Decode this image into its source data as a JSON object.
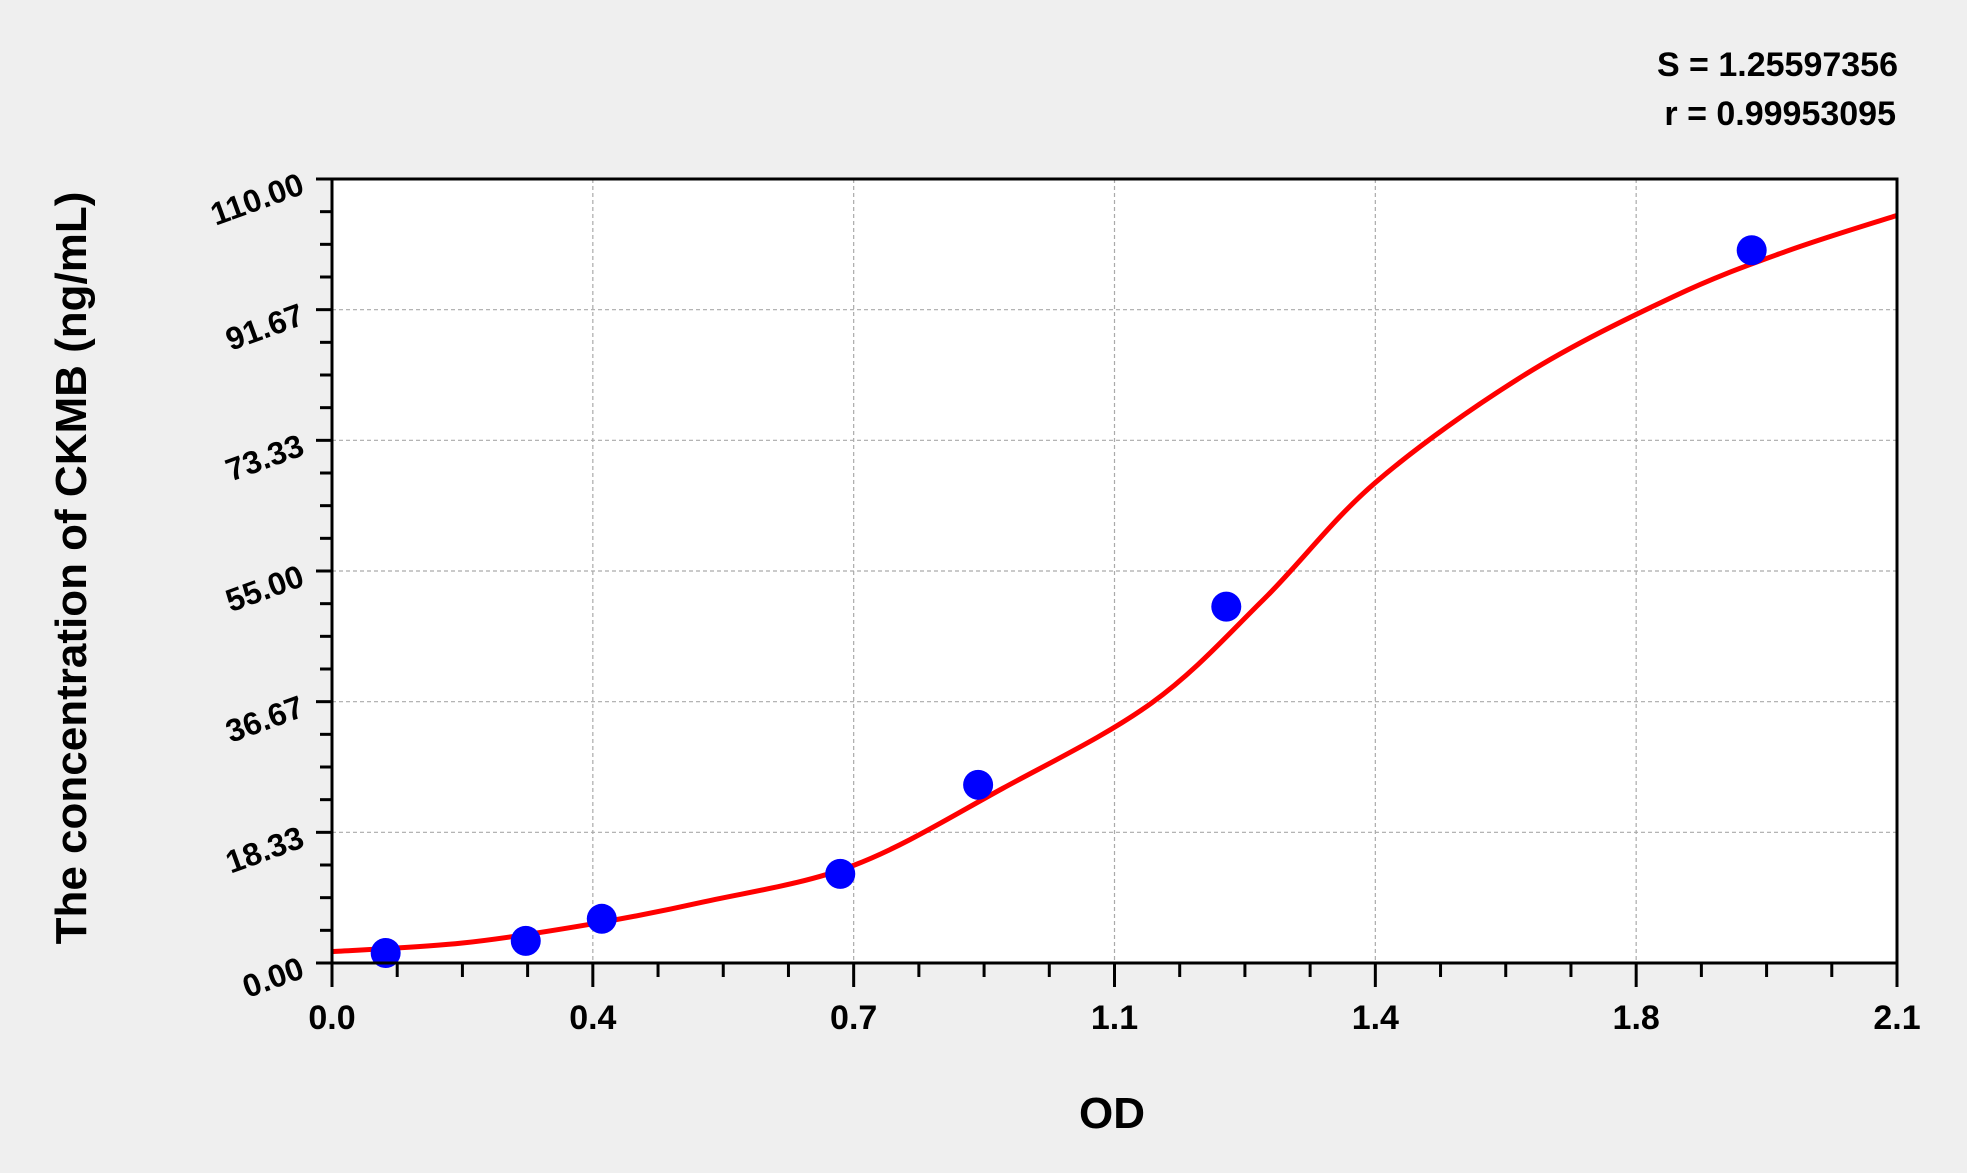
{
  "chart_data": {
    "type": "scatter",
    "title": "",
    "xlabel": "OD",
    "ylabel": "The concentration of CKMB (ng/mL)",
    "xlim": [
      0,
      2.1
    ],
    "ylim": [
      0,
      110
    ],
    "x_ticks": [
      "0.0",
      "0.4",
      "0.7",
      "1.1",
      "1.4",
      "1.8",
      "2.1"
    ],
    "y_ticks": [
      "0.00",
      "18.33",
      "36.67",
      "55.00",
      "73.33",
      "91.67",
      "110.00"
    ],
    "grid": true,
    "annotations": [
      "S = 1.25597356",
      "r = 0.99953095"
    ],
    "colors": {
      "points": "#0000ff",
      "curve": "#ff0000",
      "background": "#efefef",
      "plot": "#ffffff"
    },
    "points": {
      "x": [
        0.072,
        0.26,
        0.362,
        0.682,
        0.867,
        1.2,
        1.905
      ],
      "y": [
        1.4,
        3.1,
        6.2,
        12.5,
        25.0,
        50.0,
        100.0
      ]
    },
    "fit_curve": {
      "x": [
        0,
        0.175,
        0.35,
        0.5,
        0.7,
        0.9,
        1.1,
        1.25,
        1.4,
        1.6,
        1.8,
        1.95,
        2.1
      ],
      "y": [
        1.6,
        2.8,
        5.5,
        8.6,
        13.7,
        24.5,
        36.5,
        51.0,
        67.4,
        82.5,
        93.5,
        99.8,
        104.9
      ]
    }
  }
}
